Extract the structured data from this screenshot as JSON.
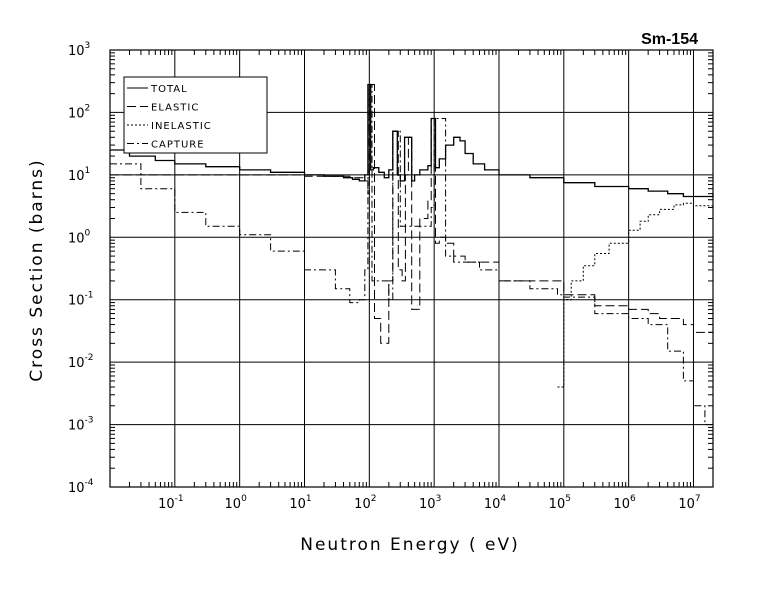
{
  "chart_data": {
    "type": "line",
    "title": "Sm-154",
    "xlabel": "Neutron Energy ( eV)",
    "ylabel": "Cross Section (barns)",
    "x_scale": "log",
    "y_scale": "log",
    "xlim": [
      0.01,
      20000000
    ],
    "ylim": [
      0.0001,
      1000
    ],
    "grid": true,
    "legend_position": "top-left",
    "x_ticks": [
      {
        "base": "10",
        "exp": "-1",
        "value": 0.1
      },
      {
        "base": "10",
        "exp": "0",
        "value": 1
      },
      {
        "base": "10",
        "exp": "1",
        "value": 10
      },
      {
        "base": "10",
        "exp": "2",
        "value": 100
      },
      {
        "base": "10",
        "exp": "3",
        "value": 1000
      },
      {
        "base": "10",
        "exp": "4",
        "value": 10000
      },
      {
        "base": "10",
        "exp": "5",
        "value": 100000
      },
      {
        "base": "10",
        "exp": "6",
        "value": 1000000
      },
      {
        "base": "10",
        "exp": "7",
        "value": 10000000
      }
    ],
    "y_ticks": [
      {
        "base": "10",
        "exp": "-4",
        "value": 0.0001
      },
      {
        "base": "10",
        "exp": "-3",
        "value": 0.001
      },
      {
        "base": "10",
        "exp": "-2",
        "value": 0.01
      },
      {
        "base": "10",
        "exp": "-1",
        "value": 0.1
      },
      {
        "base": "10",
        "exp": "0",
        "value": 1
      },
      {
        "base": "10",
        "exp": "1",
        "value": 10
      },
      {
        "base": "10",
        "exp": "2",
        "value": 100
      },
      {
        "base": "10",
        "exp": "3",
        "value": 1000
      }
    ],
    "series": [
      {
        "name": "TOTAL",
        "line_style": "solid",
        "x": [
          0.01,
          0.02,
          0.05,
          0.1,
          0.3,
          1,
          3,
          10,
          20,
          40,
          55,
          70,
          85,
          95,
          100,
          105,
          115,
          140,
          170,
          200,
          230,
          250,
          270,
          300,
          350,
          400,
          450,
          500,
          600,
          800,
          900,
          950,
          1000,
          1050,
          1200,
          1500,
          2000,
          2500,
          3000,
          4000,
          6000,
          10000,
          30000,
          100000,
          300000,
          1000000,
          2000000,
          4000000,
          7000000,
          10000000,
          20000000
        ],
        "y": [
          25,
          20,
          17,
          15,
          13.5,
          12,
          11,
          10,
          9.5,
          9,
          8.5,
          8,
          10,
          280,
          280,
          12,
          13,
          11,
          9,
          12,
          50,
          50,
          10,
          8,
          40,
          40,
          8,
          10,
          12,
          14,
          80,
          80,
          80,
          13,
          18,
          30,
          40,
          35,
          22,
          15,
          12,
          10,
          9,
          7.5,
          6.5,
          6,
          5.5,
          5,
          4.5,
          4.5,
          5
        ]
      },
      {
        "name": "ELASTIC",
        "line_style": "dashed",
        "x": [
          0.01,
          0.1,
          1,
          10,
          50,
          80,
          95,
          100,
          105,
          120,
          150,
          170,
          200,
          230,
          250,
          280,
          320,
          360,
          400,
          450,
          500,
          600,
          800,
          900,
          950,
          1000,
          1050,
          1200,
          1500,
          2000,
          3000,
          10000,
          100000,
          300000,
          1000000,
          2000000,
          3000000,
          5000000,
          7000000,
          10000000,
          20000000
        ],
        "y": [
          10,
          10,
          10,
          9.5,
          9,
          8,
          5,
          280,
          280,
          0.05,
          0.02,
          0.02,
          0.2,
          50,
          50,
          0.3,
          0.2,
          10,
          40,
          0.07,
          0.07,
          2,
          4,
          80,
          80,
          80,
          0.8,
          1,
          0.8,
          0.5,
          0.4,
          0.2,
          0.12,
          0.08,
          0.07,
          0.06,
          0.05,
          0.05,
          0.04,
          0.03,
          0.03
        ]
      },
      {
        "name": "INELASTIC",
        "line_style": "dotted",
        "x": [
          80000,
          90000,
          100000,
          130000,
          200000,
          300000,
          500000,
          1000000,
          1500000,
          2000000,
          3000000,
          5000000,
          7000000,
          10000000,
          20000000
        ],
        "y": [
          0.004,
          0.004,
          0.1,
          0.2,
          0.35,
          0.55,
          0.8,
          1.3,
          1.8,
          2.3,
          2.8,
          3.3,
          3.5,
          3.2,
          1.2
        ]
      },
      {
        "name": "CAPTURE",
        "line_style": "dashdot",
        "x": [
          0.01,
          0.03,
          0.1,
          0.3,
          1,
          3,
          10,
          30,
          50,
          70,
          85,
          95,
          100,
          105,
          110,
          200,
          230,
          250,
          300,
          600,
          900,
          1000,
          1500,
          2000,
          5000,
          10000,
          30000,
          80000,
          100000,
          300000,
          1000000,
          2000000,
          4000000,
          7000000,
          10000000,
          15000000,
          20000000
        ],
        "y": [
          15,
          6,
          2.5,
          1.5,
          1.1,
          0.6,
          0.3,
          0.15,
          0.09,
          0.1,
          0.3,
          10,
          280,
          280,
          0.2,
          0.1,
          50,
          50,
          1.5,
          1.5,
          3,
          80,
          0.5,
          0.4,
          0.3,
          0.2,
          0.15,
          0.12,
          0.11,
          0.06,
          0.05,
          0.04,
          0.015,
          0.005,
          0.002,
          0.001,
          0.0012
        ]
      }
    ]
  }
}
